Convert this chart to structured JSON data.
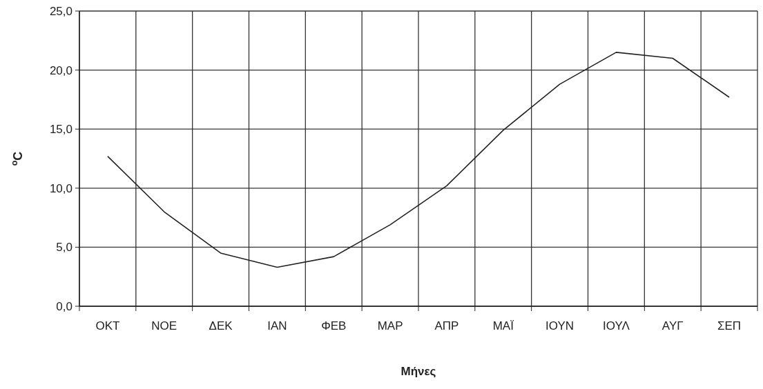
{
  "chart_data": {
    "type": "line",
    "xlabel": "Μήνες",
    "ylabel": "$^{o}$C",
    "categories": [
      "ΟΚΤ",
      "ΝΟΕ",
      "ΔΕΚ",
      "ΙΑΝ",
      "ΦΕΒ",
      "ΜΑΡ",
      "ΑΠΡ",
      "ΜΑΪ",
      "ΙΟΥΝ",
      "ΙΟΥΛ",
      "ΑΥΓ",
      "ΣΕΠ"
    ],
    "series": [
      {
        "color": "#222222",
        "values": [
          12.7,
          8.0,
          4.5,
          3.3,
          4.2,
          6.9,
          10.2,
          14.9,
          18.8,
          21.5,
          21.0,
          17.7
        ]
      }
    ],
    "ylim": [
      0,
      25
    ],
    "yticks": [
      {
        "value": 0,
        "label": "0,0"
      },
      {
        "value": 5,
        "label": "5,0"
      },
      {
        "value": 10,
        "label": "10,0"
      },
      {
        "value": 15,
        "label": "15,0"
      },
      {
        "value": 20,
        "label": "20,0"
      },
      {
        "value": 25,
        "label": "25,0"
      }
    ],
    "grid": true,
    "marker": "none",
    "line_style": "solid"
  }
}
